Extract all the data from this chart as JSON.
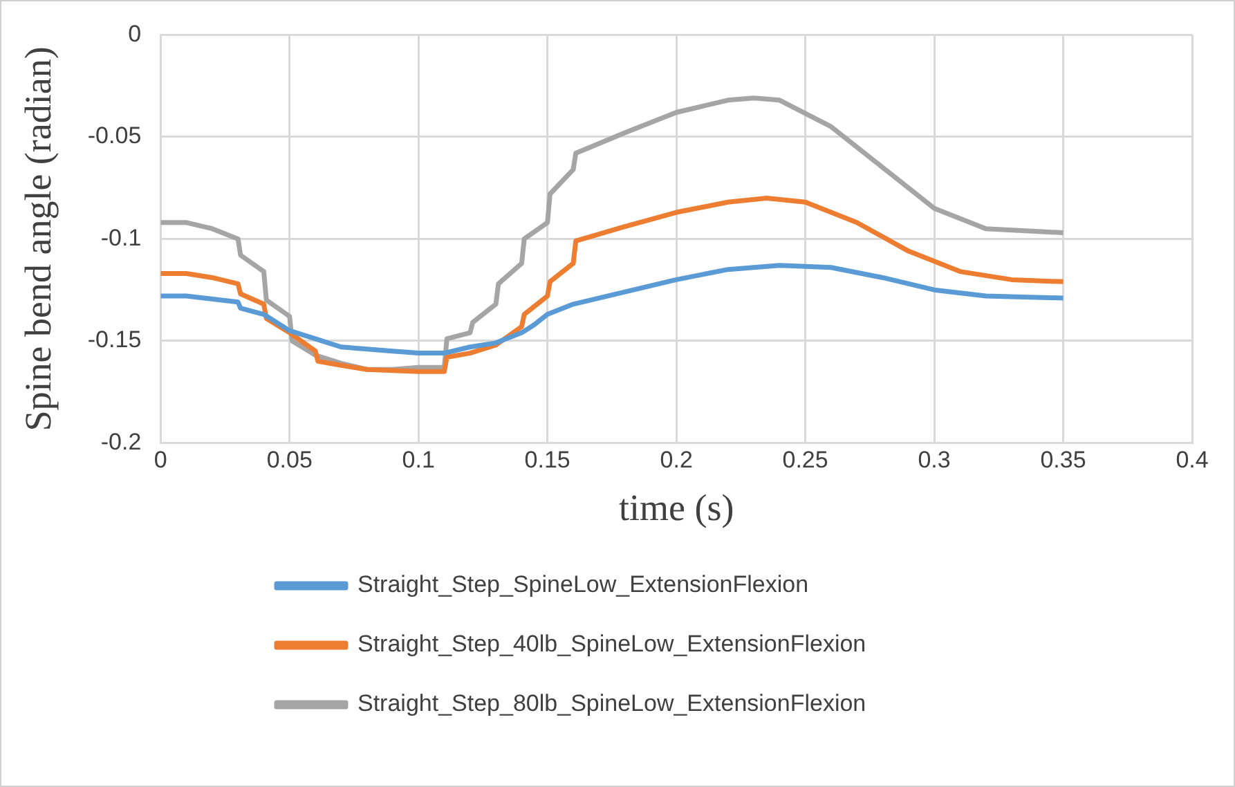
{
  "chart_data": {
    "type": "line",
    "xlabel": "time (s)",
    "ylabel": "Spine bend angle (radian)",
    "xlim": [
      0,
      0.4
    ],
    "xticks": [
      0,
      0.05,
      0.1,
      0.15,
      0.2,
      0.25,
      0.3,
      0.35,
      0.4
    ],
    "ylim": [
      -0.2,
      0
    ],
    "yticks": [
      -0.2,
      -0.15,
      -0.1,
      -0.05,
      0
    ],
    "grid": true,
    "legend": "bottom",
    "marker": "none",
    "line_style": "solid",
    "series": [
      {
        "name": "Straight_Step_SpineLow_ExtensionFlexion",
        "color": "#5b9bd5",
        "x": [
          0,
          0.01,
          0.03,
          0.031,
          0.04,
          0.05,
          0.06,
          0.07,
          0.08,
          0.09,
          0.1,
          0.11,
          0.12,
          0.13,
          0.14,
          0.145,
          0.15,
          0.16,
          0.18,
          0.2,
          0.22,
          0.24,
          0.26,
          0.28,
          0.3,
          0.32,
          0.35
        ],
        "values": [
          -0.128,
          -0.128,
          -0.131,
          -0.134,
          -0.137,
          -0.145,
          -0.149,
          -0.153,
          -0.154,
          -0.155,
          -0.156,
          -0.156,
          -0.153,
          -0.151,
          -0.146,
          -0.142,
          -0.137,
          -0.132,
          -0.126,
          -0.12,
          -0.115,
          -0.113,
          -0.114,
          -0.119,
          -0.125,
          -0.128,
          -0.129
        ]
      },
      {
        "name": "Straight_Step_40lb_SpineLow_ExtensionFlexion",
        "color": "#ed7d31",
        "x": [
          0,
          0.01,
          0.02,
          0.03,
          0.031,
          0.04,
          0.041,
          0.05,
          0.06,
          0.061,
          0.07,
          0.08,
          0.1,
          0.11,
          0.111,
          0.12,
          0.13,
          0.14,
          0.141,
          0.15,
          0.151,
          0.16,
          0.161,
          0.18,
          0.2,
          0.22,
          0.235,
          0.25,
          0.27,
          0.29,
          0.31,
          0.33,
          0.35
        ],
        "values": [
          -0.117,
          -0.117,
          -0.119,
          -0.122,
          -0.127,
          -0.132,
          -0.139,
          -0.146,
          -0.155,
          -0.16,
          -0.162,
          -0.164,
          -0.165,
          -0.165,
          -0.158,
          -0.156,
          -0.152,
          -0.143,
          -0.137,
          -0.128,
          -0.121,
          -0.112,
          -0.101,
          -0.094,
          -0.087,
          -0.082,
          -0.08,
          -0.082,
          -0.092,
          -0.106,
          -0.116,
          -0.12,
          -0.121
        ]
      },
      {
        "name": "Straight_Step_80lb_SpineLow_ExtensionFlexion",
        "color": "#a5a5a5",
        "x": [
          0,
          0.01,
          0.02,
          0.03,
          0.031,
          0.04,
          0.041,
          0.05,
          0.051,
          0.06,
          0.07,
          0.08,
          0.09,
          0.1,
          0.11,
          0.111,
          0.12,
          0.121,
          0.13,
          0.131,
          0.14,
          0.141,
          0.15,
          0.151,
          0.16,
          0.161,
          0.18,
          0.2,
          0.22,
          0.23,
          0.24,
          0.26,
          0.28,
          0.3,
          0.32,
          0.35
        ],
        "values": [
          -0.092,
          -0.092,
          -0.095,
          -0.1,
          -0.108,
          -0.116,
          -0.13,
          -0.138,
          -0.15,
          -0.157,
          -0.161,
          -0.164,
          -0.164,
          -0.163,
          -0.163,
          -0.149,
          -0.146,
          -0.141,
          -0.132,
          -0.122,
          -0.112,
          -0.1,
          -0.092,
          -0.078,
          -0.066,
          -0.058,
          -0.048,
          -0.038,
          -0.032,
          -0.031,
          -0.032,
          -0.045,
          -0.065,
          -0.085,
          -0.095,
          -0.097
        ]
      }
    ]
  }
}
